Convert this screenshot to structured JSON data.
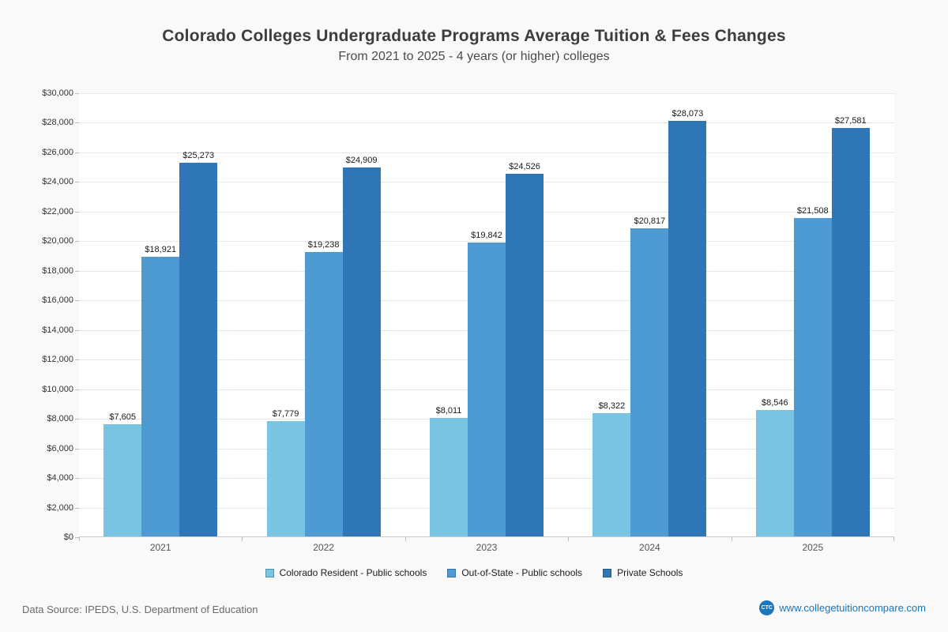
{
  "footer": {
    "source": "Data Source: IPEDS, U.S. Department of Education",
    "logo": "CTC",
    "website": "www.collegetuitioncompare.com"
  },
  "chart_data": {
    "type": "bar",
    "title": "Colorado Colleges Undergraduate Programs Average Tuition & Fees Changes",
    "subtitle": "From 2021 to 2025 - 4 years (or higher) colleges",
    "categories": [
      "2021",
      "2022",
      "2023",
      "2024",
      "2025"
    ],
    "series": [
      {
        "name": "Colorado Resident - Public schools",
        "color": "#79c4e2",
        "values": [
          7605,
          7779,
          8011,
          8322,
          8546
        ]
      },
      {
        "name": "Out-of-State - Public schools",
        "color": "#4e9ad3",
        "values": [
          18921,
          19238,
          19842,
          20817,
          21508
        ]
      },
      {
        "name": "Private Schools",
        "color": "#2e76b6",
        "values": [
          25273,
          24909,
          24526,
          28073,
          27581
        ]
      }
    ],
    "ylim": [
      0,
      30000
    ],
    "ytick_step": 2000,
    "value_prefix": "$",
    "grid": true,
    "legend_position": "bottom",
    "xlabel": "",
    "ylabel": ""
  }
}
